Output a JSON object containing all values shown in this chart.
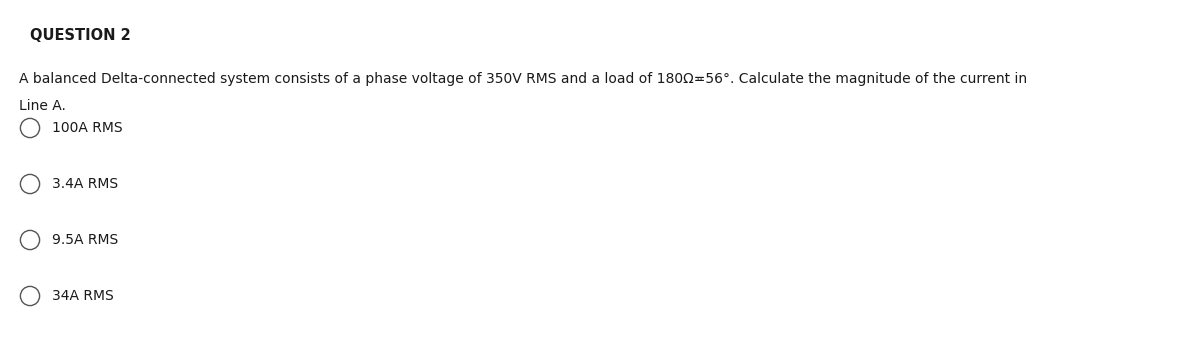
{
  "title": "QUESTION 2",
  "question_line1": "A balanced Delta-connected system consists of a phase voltage of 350V RMS and a load of 180Ω≖56°. Calculate the magnitude of the current in",
  "question_line2": "Line A.",
  "options": [
    "100A RMS",
    "3.4A RMS",
    "9.5A RMS",
    "34A RMS"
  ],
  "bg_color": "#ffffff",
  "text_color": "#1a1a1a",
  "title_fontsize": 10.5,
  "question_fontsize": 10,
  "option_fontsize": 10,
  "title_bold": true
}
